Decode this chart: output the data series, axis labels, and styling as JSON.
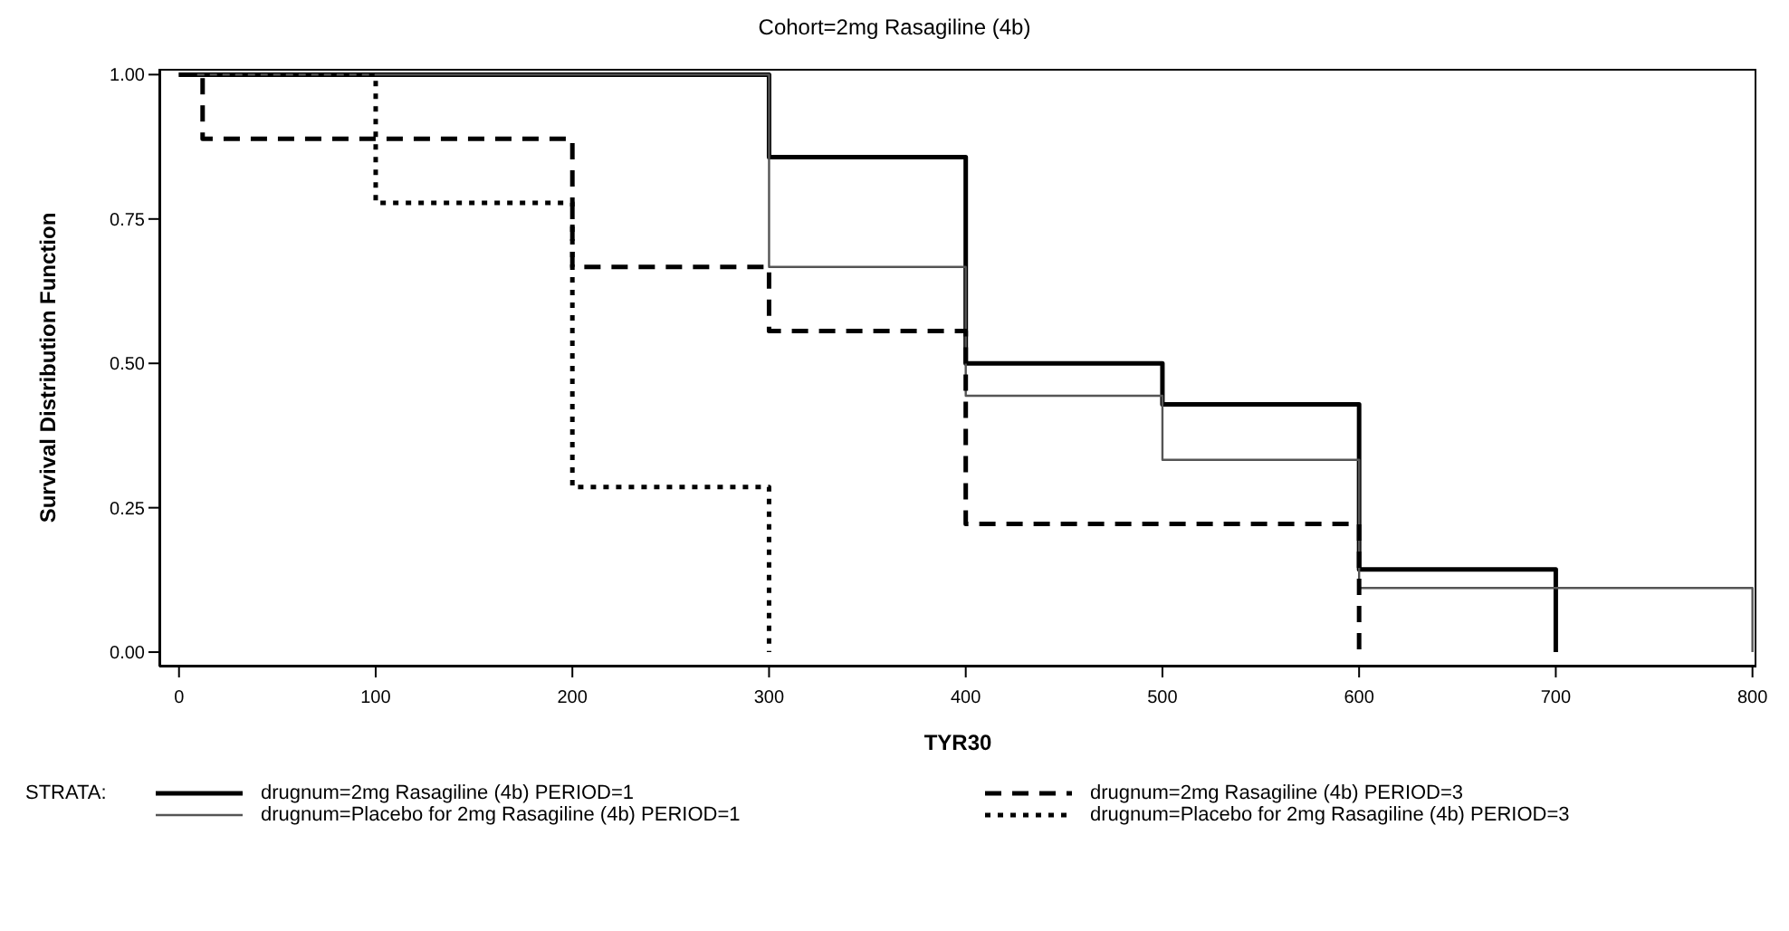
{
  "chart_data": {
    "type": "step",
    "title": "Cohort=2mg Rasagiline (4b)",
    "xlabel": "TYR30",
    "ylabel": "Survival Distribution Function",
    "legend_title": "STRATA:",
    "legend": "bottom",
    "grid": false,
    "marker": "none",
    "xlim": [
      -10,
      802
    ],
    "xticks": [
      0,
      100,
      200,
      300,
      400,
      500,
      600,
      700,
      800
    ],
    "ylim": [
      -0.025,
      1.01
    ],
    "yticks": [
      {
        "value": 0,
        "label": "0.00"
      },
      {
        "value": 0.25,
        "label": "0.25"
      },
      {
        "value": 0.5,
        "label": "0.50"
      },
      {
        "value": 0.75,
        "label": "0.75"
      },
      {
        "value": 1,
        "label": "1.00"
      }
    ],
    "series": [
      {
        "name": "drugnum=2mg Rasagiline (4b) PERIOD=1",
        "color": "#000000",
        "line_style": "solid",
        "x": [
          0,
          300,
          400,
          500,
          600,
          700
        ],
        "values": [
          1,
          0.857,
          0.5,
          0.429,
          0.143,
          0
        ]
      },
      {
        "name": "drugnum=Placebo for 2mg Rasagiline (4b) PERIOD=1",
        "color": "#555555",
        "line_style": "solid",
        "x": [
          0,
          300,
          400,
          500,
          600,
          800
        ],
        "values": [
          1,
          0.667,
          0.444,
          0.333,
          0.111,
          0
        ]
      },
      {
        "name": "drugnum=2mg Rasagiline (4b) PERIOD=3",
        "color": "#000000",
        "line_style": "dashed",
        "x": [
          0,
          12,
          200,
          300,
          400,
          600
        ],
        "values": [
          1,
          0.889,
          0.667,
          0.556,
          0.222,
          0
        ]
      },
      {
        "name": "drugnum=Placebo for 2mg Rasagiline (4b) PERIOD=3",
        "color": "#000000",
        "line_style": "dotted",
        "x": [
          0,
          100,
          200,
          300
        ],
        "values": [
          1,
          0.778,
          0.286,
          0
        ]
      }
    ]
  }
}
